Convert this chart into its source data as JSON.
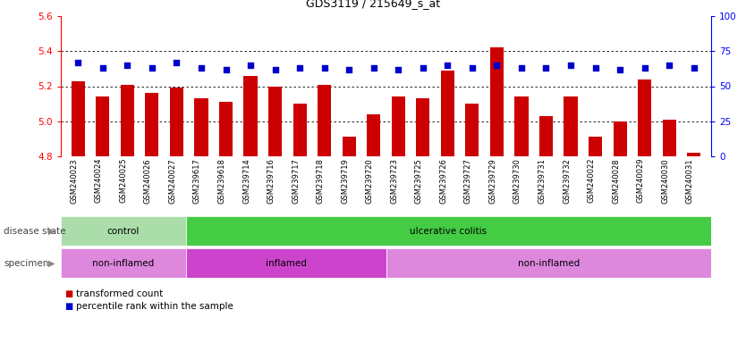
{
  "title": "GDS3119 / 215649_s_at",
  "samples": [
    "GSM240023",
    "GSM240024",
    "GSM240025",
    "GSM240026",
    "GSM240027",
    "GSM239617",
    "GSM239618",
    "GSM239714",
    "GSM239716",
    "GSM239717",
    "GSM239718",
    "GSM239719",
    "GSM239720",
    "GSM239723",
    "GSM239725",
    "GSM239726",
    "GSM239727",
    "GSM239729",
    "GSM239730",
    "GSM239731",
    "GSM239732",
    "GSM240022",
    "GSM240028",
    "GSM240029",
    "GSM240030",
    "GSM240031"
  ],
  "transformed_count": [
    5.23,
    5.14,
    5.21,
    5.16,
    5.19,
    5.13,
    5.11,
    5.26,
    5.2,
    5.1,
    5.21,
    4.91,
    5.04,
    5.14,
    5.13,
    5.29,
    5.1,
    5.42,
    5.14,
    5.03,
    5.14,
    4.91,
    5.0,
    5.24,
    5.01,
    4.82
  ],
  "percentile_rank": [
    67,
    63,
    65,
    63,
    67,
    63,
    62,
    65,
    62,
    63,
    63,
    62,
    63,
    62,
    63,
    65,
    63,
    65,
    63,
    63,
    65,
    63,
    62,
    63,
    65,
    63
  ],
  "bar_color": "#cc0000",
  "dot_color": "#0000cc",
  "ylim_left": [
    4.8,
    5.6
  ],
  "ylim_right": [
    0,
    100
  ],
  "yticks_left": [
    4.8,
    5.0,
    5.2,
    5.4,
    5.6
  ],
  "yticks_right": [
    0,
    25,
    50,
    75,
    100
  ],
  "grid_ticks": [
    5.0,
    5.2,
    5.4
  ],
  "disease_state_groups": [
    {
      "label": "control",
      "start": 0,
      "end": 5,
      "color": "#aaddaa"
    },
    {
      "label": "ulcerative colitis",
      "start": 5,
      "end": 26,
      "color": "#44cc44"
    }
  ],
  "specimen_groups": [
    {
      "label": "non-inflamed",
      "start": 0,
      "end": 5,
      "color": "#dd88dd"
    },
    {
      "label": "inflamed",
      "start": 5,
      "end": 13,
      "color": "#cc44cc"
    },
    {
      "label": "non-inflamed",
      "start": 13,
      "end": 26,
      "color": "#dd88dd"
    }
  ],
  "legend_items": [
    {
      "label": "transformed count",
      "color": "#cc0000"
    },
    {
      "label": "percentile rank within the sample",
      "color": "#0000cc"
    }
  ],
  "sample_bg_color": "#d8d8d8",
  "plot_bg_color": "#ffffff"
}
